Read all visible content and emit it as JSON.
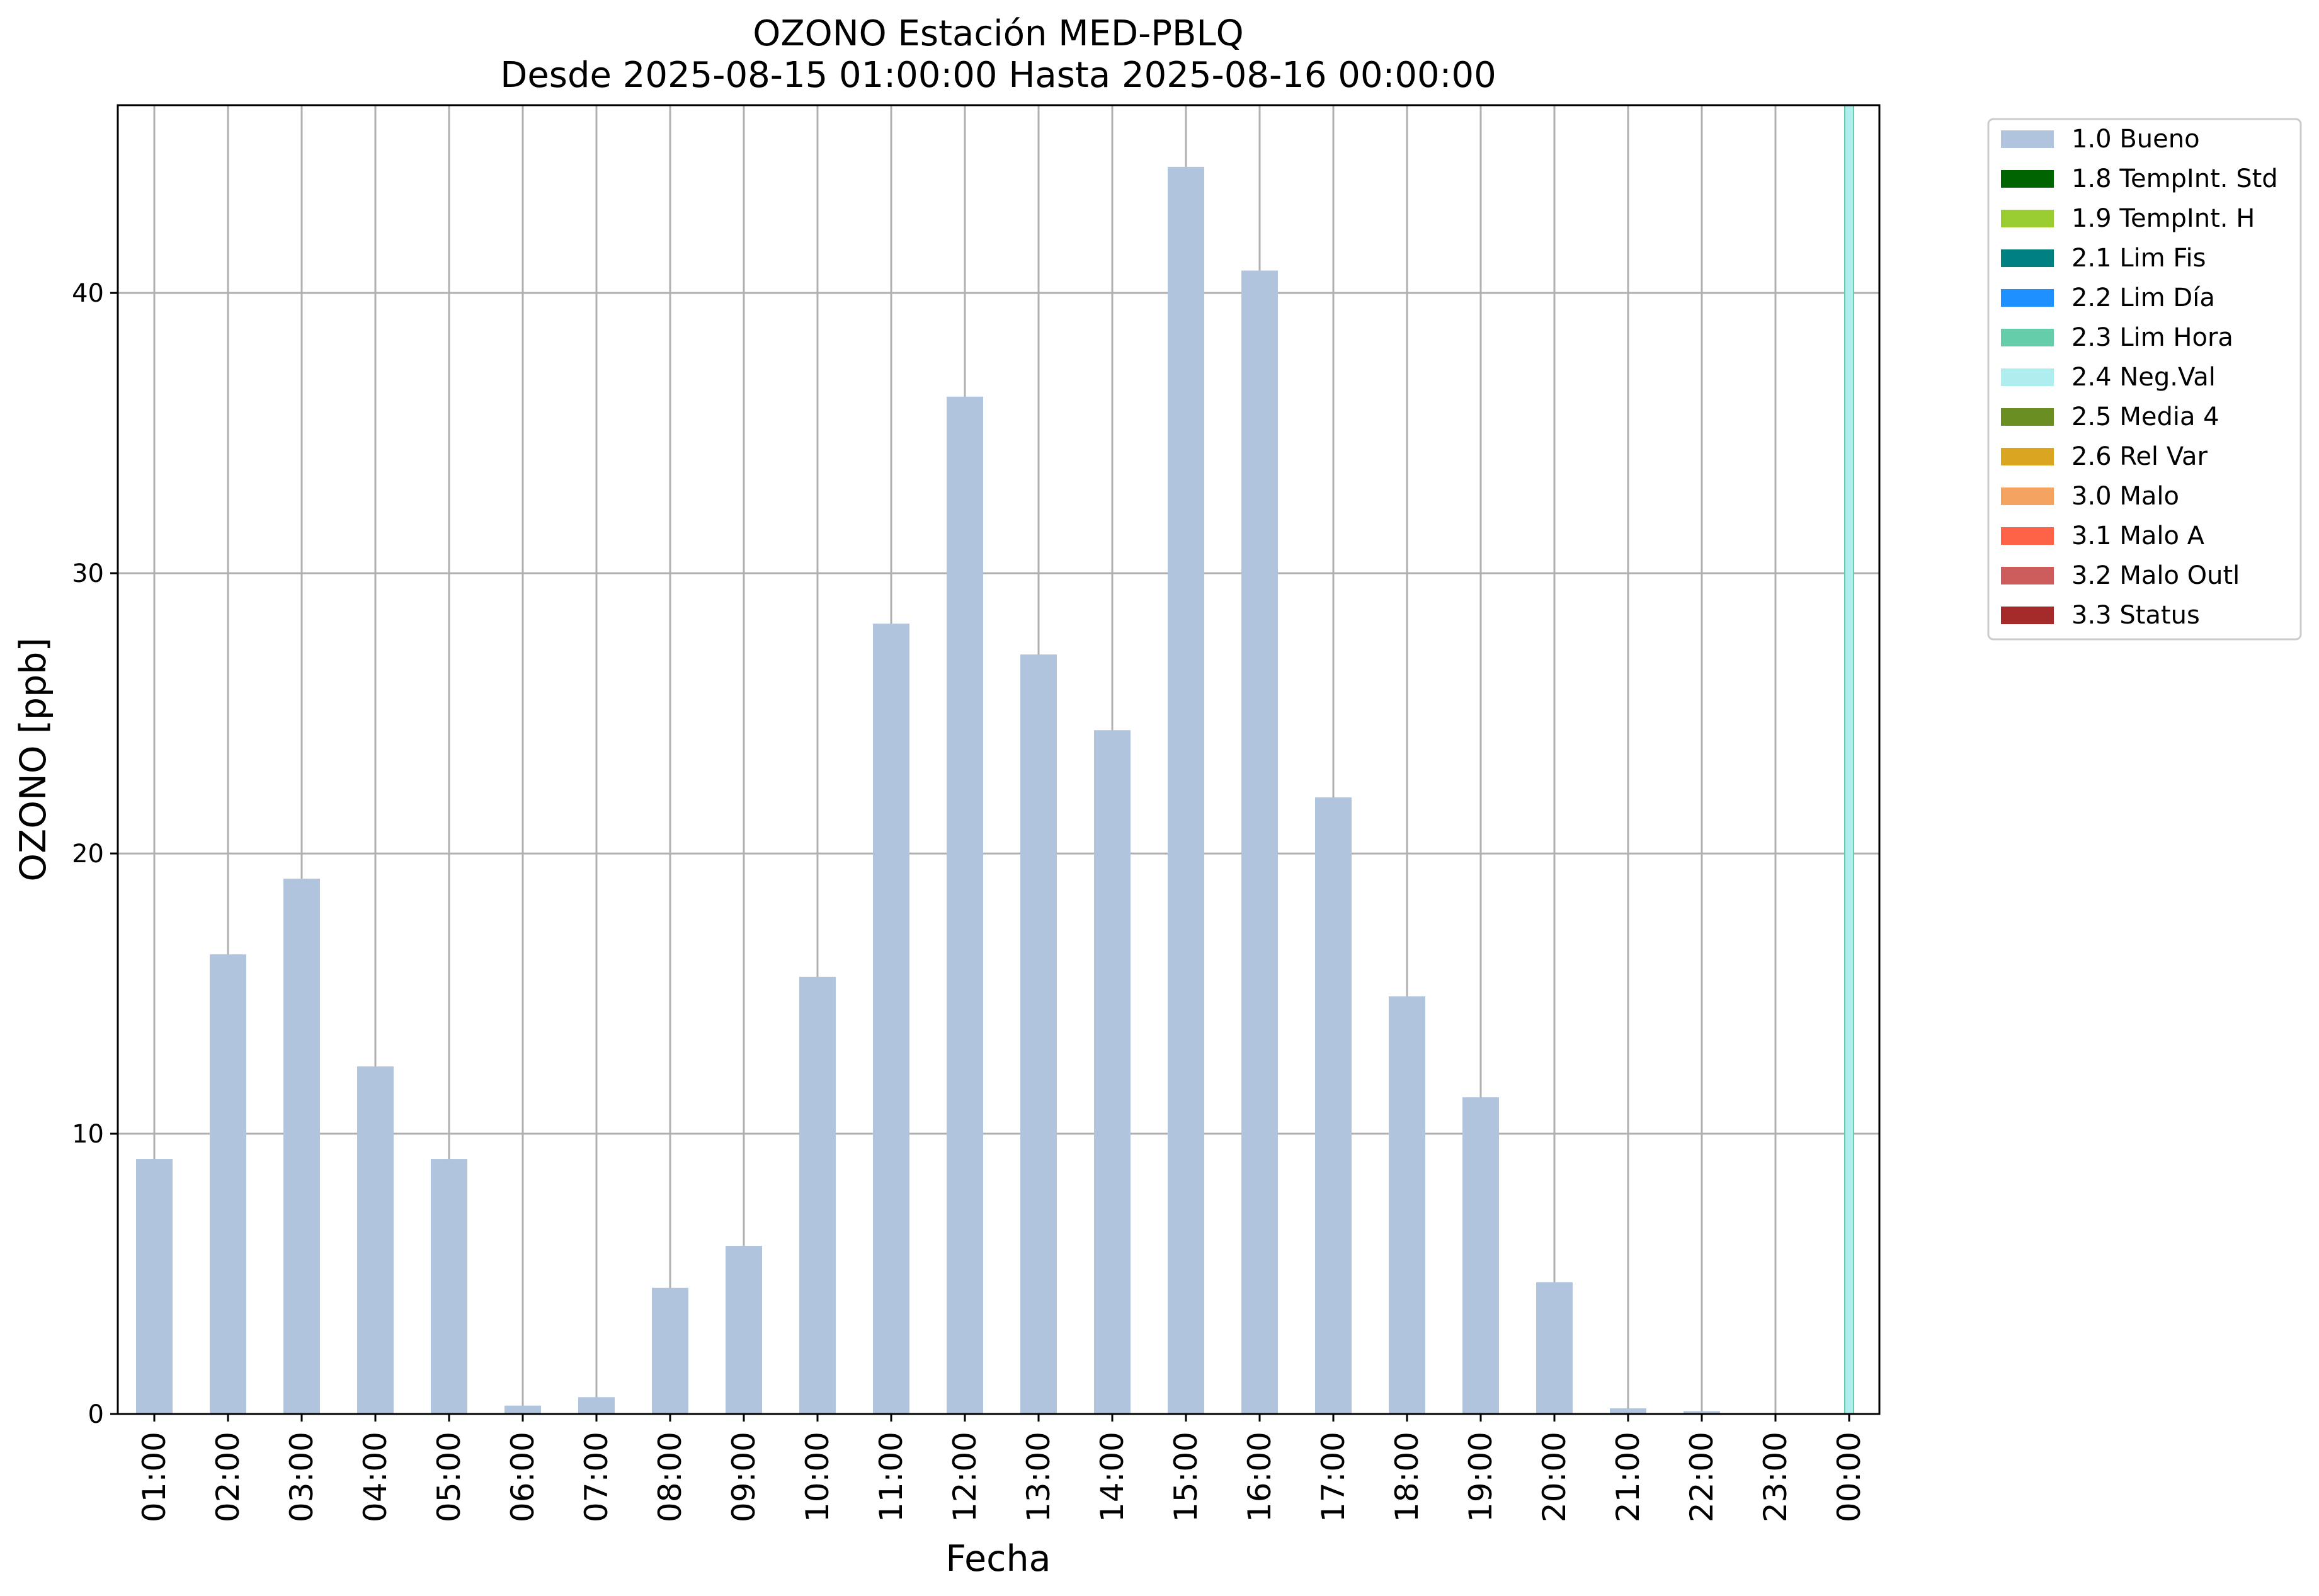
{
  "chart_data": {
    "type": "bar",
    "title": "OZONO Estación MED-PBLQ",
    "subtitle": "Desde 2025-08-15 01:00:00 Hasta 2025-08-16 00:00:00",
    "xlabel": "Fecha",
    "ylabel": "OZONO [ppb]",
    "ylim": [
      0,
      46.7
    ],
    "yticks": [
      0,
      10,
      20,
      30,
      40
    ],
    "grid": true,
    "legend_position": "outside-top-right",
    "categories": [
      "01:00",
      "02:00",
      "03:00",
      "04:00",
      "05:00",
      "06:00",
      "07:00",
      "08:00",
      "09:00",
      "10:00",
      "11:00",
      "12:00",
      "13:00",
      "14:00",
      "15:00",
      "16:00",
      "17:00",
      "18:00",
      "19:00",
      "20:00",
      "21:00",
      "22:00",
      "23:00",
      "00:00"
    ],
    "series": [
      {
        "name": "1.0 Bueno",
        "color": "#b0c4de",
        "values": [
          9.1,
          16.4,
          19.1,
          12.4,
          9.1,
          0.3,
          0.6,
          4.5,
          6.0,
          15.6,
          28.2,
          36.3,
          27.1,
          24.4,
          44.5,
          40.8,
          22.0,
          14.9,
          11.3,
          4.7,
          0.2,
          0.1,
          0.0,
          0.0
        ]
      }
    ],
    "highlight": {
      "category": "00:00",
      "flag": "2.4 Neg.Val",
      "color": "#afeeee",
      "edge_color": "#66cdaa"
    },
    "legend": [
      {
        "label": "1.0 Bueno",
        "color": "#b0c4de"
      },
      {
        "label": "1.8 TempInt. Std",
        "color": "#006400"
      },
      {
        "label": "1.9 TempInt. H",
        "color": "#9acd32"
      },
      {
        "label": "2.1 Lim Fis",
        "color": "#008080"
      },
      {
        "label": "2.2 Lim Día",
        "color": "#1e90ff"
      },
      {
        "label": "2.3 Lim Hora",
        "color": "#66cdaa"
      },
      {
        "label": "2.4 Neg.Val",
        "color": "#afeeee"
      },
      {
        "label": "2.5 Media 4",
        "color": "#6b8e23"
      },
      {
        "label": "2.6 Rel Var",
        "color": "#daa520"
      },
      {
        "label": "3.0 Malo",
        "color": "#f4a460"
      },
      {
        "label": "3.1 Malo A",
        "color": "#ff6347"
      },
      {
        "label": "3.2 Malo Outl",
        "color": "#cd5c5c"
      },
      {
        "label": "3.3 Status",
        "color": "#a52a2a"
      }
    ]
  }
}
